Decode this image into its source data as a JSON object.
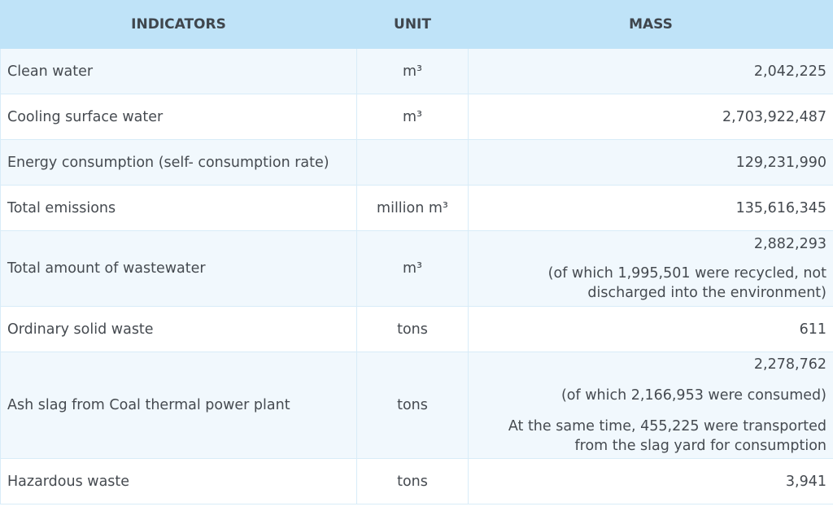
{
  "headers": {
    "indicators": "INDICATORS",
    "unit": "UNIT",
    "mass": "MASS"
  },
  "rows": [
    {
      "indicator": "Clean water",
      "unit": "m³",
      "mass": "2,042,225"
    },
    {
      "indicator": "Cooling surface water",
      "unit": "m³",
      "mass": "2,703,922,487"
    },
    {
      "indicator": "Energy consumption (self- consumption rate)",
      "unit": "",
      "mass": "129,231,990"
    },
    {
      "indicator": "Total emissions",
      "unit": "million m³",
      "mass": "135,616,345"
    },
    {
      "indicator": "Total amount of wastewater",
      "unit": "m³",
      "mass": "2,882,293",
      "note1": "(of which 1,995,501 were recycled, not",
      "note2": "discharged into the environment)"
    },
    {
      "indicator": "Ordinary solid waste",
      "unit": "tons",
      "mass": "611"
    },
    {
      "indicator": "Ash slag from Coal thermal power plant",
      "unit": "tons",
      "mass": "2,278,762",
      "note1": "(of which 2,166,953 were consumed)",
      "note2": "At the same time, 455,225 were transported",
      "note3": "from the slag yard for consumption"
    },
    {
      "indicator": "Hazardous waste",
      "unit": "tons",
      "mass": "3,941"
    }
  ]
}
